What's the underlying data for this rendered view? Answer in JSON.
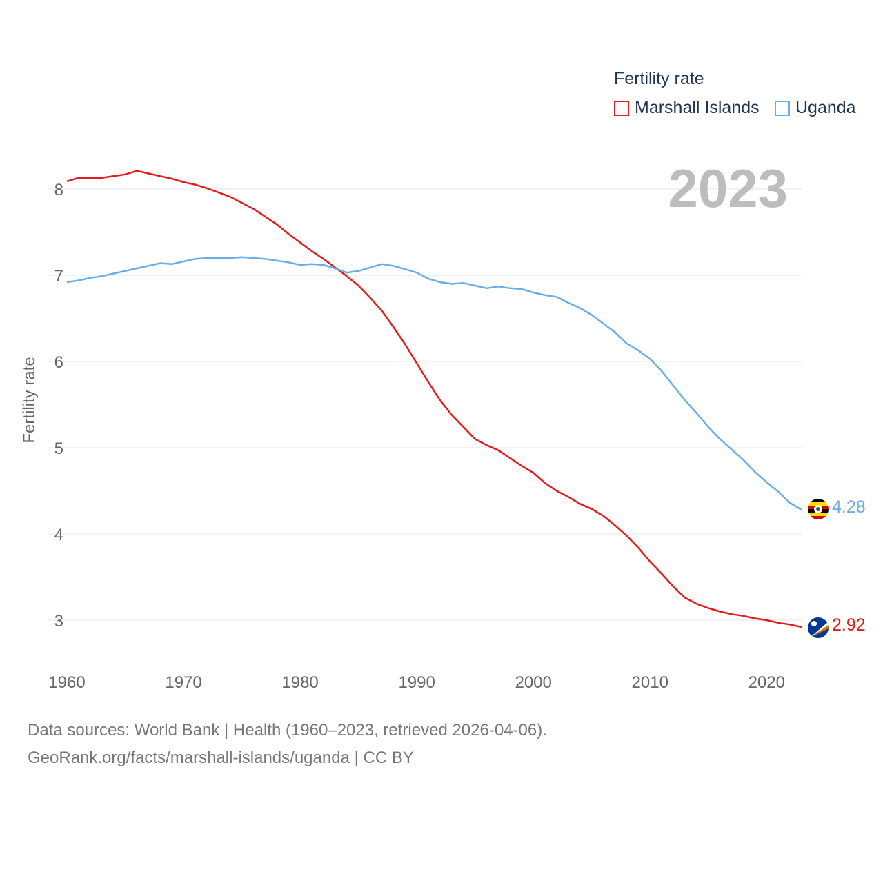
{
  "legend": {
    "title": "Fertility rate",
    "items": [
      {
        "label": "Marshall Islands",
        "color": "#e41a1c"
      },
      {
        "label": "Uganda",
        "color": "#6aaee6"
      }
    ]
  },
  "year_label": "2023",
  "end_labels": {
    "uganda": "4.28",
    "marshall": "2.92"
  },
  "flags": {
    "uganda": "uganda-flag-icon",
    "marshall": "marshall-islands-flag-icon"
  },
  "footer": {
    "line1": "Data sources: World Bank | Health (1960–2023, retrieved 2026-04-06).",
    "line2": "GeoRank.org/facts/marshall-islands/uganda | CC BY"
  },
  "chart_data": {
    "type": "line",
    "title": "Fertility rate",
    "xlabel": "",
    "ylabel": "Fertility rate",
    "xlim": [
      1960,
      2023
    ],
    "ylim": [
      2.5,
      8.4
    ],
    "x_ticks": [
      1960,
      1970,
      1980,
      1990,
      2000,
      2010,
      2020
    ],
    "y_ticks": [
      3,
      4,
      5,
      6,
      7,
      8
    ],
    "grid": true,
    "legend_position": "top-right",
    "x": [
      1960,
      1961,
      1962,
      1963,
      1964,
      1965,
      1966,
      1967,
      1968,
      1969,
      1970,
      1971,
      1972,
      1973,
      1974,
      1975,
      1976,
      1977,
      1978,
      1979,
      1980,
      1981,
      1982,
      1983,
      1984,
      1985,
      1986,
      1987,
      1988,
      1989,
      1990,
      1991,
      1992,
      1993,
      1994,
      1995,
      1996,
      1997,
      1998,
      1999,
      2000,
      2001,
      2002,
      2003,
      2004,
      2005,
      2006,
      2007,
      2008,
      2009,
      2010,
      2011,
      2012,
      2013,
      2014,
      2015,
      2016,
      2017,
      2018,
      2019,
      2020,
      2021,
      2022,
      2023
    ],
    "series": [
      {
        "name": "Marshall Islands",
        "color": "#e41a1c",
        "values": [
          8.09,
          8.13,
          8.13,
          8.13,
          8.15,
          8.17,
          8.21,
          8.18,
          8.15,
          8.12,
          8.08,
          8.05,
          8.01,
          7.96,
          7.91,
          7.84,
          7.77,
          7.68,
          7.59,
          7.48,
          7.38,
          7.28,
          7.19,
          7.09,
          6.99,
          6.88,
          6.74,
          6.59,
          6.4,
          6.2,
          5.98,
          5.76,
          5.55,
          5.38,
          5.24,
          5.1,
          5.03,
          4.97,
          4.88,
          4.79,
          4.71,
          4.59,
          4.5,
          4.43,
          4.35,
          4.29,
          4.21,
          4.1,
          3.98,
          3.84,
          3.68,
          3.54,
          3.39,
          3.26,
          3.19,
          3.14,
          3.1,
          3.07,
          3.05,
          3.02,
          3.0,
          2.97,
          2.95,
          2.92
        ]
      },
      {
        "name": "Uganda",
        "color": "#6aaee6",
        "values": [
          6.92,
          6.94,
          6.97,
          6.99,
          7.02,
          7.05,
          7.08,
          7.11,
          7.14,
          7.13,
          7.16,
          7.19,
          7.2,
          7.2,
          7.2,
          7.21,
          7.2,
          7.19,
          7.17,
          7.15,
          7.12,
          7.13,
          7.12,
          7.08,
          7.03,
          7.05,
          7.09,
          7.13,
          7.11,
          7.07,
          7.03,
          6.96,
          6.92,
          6.9,
          6.91,
          6.88,
          6.85,
          6.87,
          6.85,
          6.84,
          6.8,
          6.77,
          6.75,
          6.68,
          6.62,
          6.54,
          6.44,
          6.34,
          6.21,
          6.13,
          6.03,
          5.89,
          5.72,
          5.55,
          5.4,
          5.24,
          5.1,
          4.98,
          4.86,
          4.72,
          4.6,
          4.49,
          4.36,
          4.28
        ]
      }
    ]
  }
}
